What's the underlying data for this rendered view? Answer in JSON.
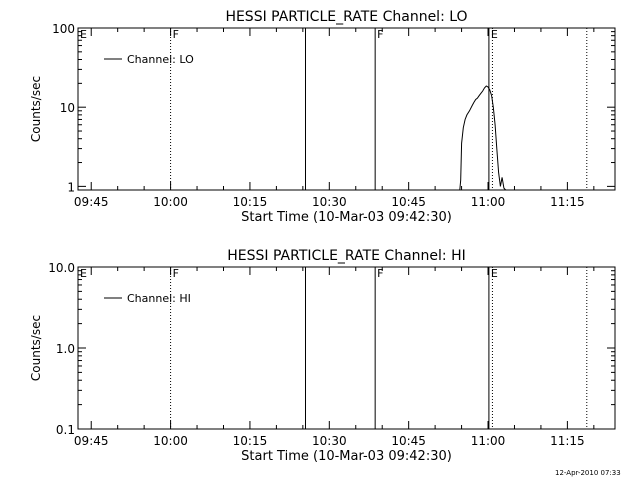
{
  "timestamp": "12-Apr-2010 07:33",
  "chart_data": [
    {
      "type": "line",
      "title": "HESSI PARTICLE_RATE Channel: LO",
      "xlabel": "Start Time (10-Mar-03 09:42:30)",
      "ylabel": "Counts/sec",
      "yscale": "log",
      "ylim": [
        0.9,
        100
      ],
      "y_ticks": [
        "1",
        "10",
        "100"
      ],
      "xlim": [
        "09:42:30",
        "11:24:00"
      ],
      "x_ticks": [
        "09:45",
        "10:00",
        "10:15",
        "10:30",
        "10:45",
        "11:00",
        "11:15"
      ],
      "legend": {
        "position": "top-left",
        "entries": [
          "Channel: LO"
        ]
      },
      "grid": false,
      "markers": [
        {
          "label": "E",
          "time": "09:42:30",
          "style": "solid"
        },
        {
          "label": "F",
          "time": "10:00:00",
          "style": "dotted"
        },
        {
          "label": "",
          "time": "10:25:30",
          "style": "solid"
        },
        {
          "label": "F",
          "time": "10:38:40",
          "style": "solid"
        },
        {
          "label": "E",
          "time": "11:00:10",
          "style": "solid"
        },
        {
          "label": "",
          "time": "11:00:50",
          "style": "dotted"
        },
        {
          "label": "",
          "time": "11:18:40",
          "style": "dotted"
        }
      ],
      "series": [
        {
          "name": "Channel: LO",
          "x": [
            "10:54:40",
            "10:54:50",
            "10:55:00",
            "10:55:20",
            "10:55:40",
            "10:56:00",
            "10:56:30",
            "10:57:00",
            "10:57:20",
            "10:57:40",
            "10:58:00",
            "10:58:20",
            "10:58:40",
            "10:59:00",
            "10:59:20",
            "10:59:40",
            "11:00:00",
            "11:00:20",
            "11:00:40",
            "11:01:00",
            "11:01:20",
            "11:01:40",
            "11:02:00",
            "11:02:20",
            "11:02:40",
            "11:03:00",
            "11:03:20"
          ],
          "y": [
            0.9,
            1.2,
            3.5,
            5.5,
            7.0,
            8.0,
            9.0,
            10.5,
            11.5,
            12.5,
            13.0,
            14.0,
            15.0,
            16.0,
            17.5,
            18.5,
            18.0,
            16.5,
            14.0,
            10.0,
            6.0,
            3.0,
            1.5,
            1.0,
            1.3,
            0.95,
            0.9
          ]
        }
      ]
    },
    {
      "type": "line",
      "title": "HESSI PARTICLE_RATE Channel: HI",
      "xlabel": "Start Time (10-Mar-03 09:42:30)",
      "ylabel": "Counts/sec",
      "yscale": "log",
      "ylim": [
        0.1,
        10
      ],
      "y_ticks": [
        "0.1",
        "1.0",
        "10.0"
      ],
      "xlim": [
        "09:42:30",
        "11:24:00"
      ],
      "x_ticks": [
        "09:45",
        "10:00",
        "10:15",
        "10:30",
        "10:45",
        "11:00",
        "11:15"
      ],
      "legend": {
        "position": "top-left",
        "entries": [
          "Channel: HI"
        ]
      },
      "grid": false,
      "markers": [
        {
          "label": "E",
          "time": "09:42:30",
          "style": "solid"
        },
        {
          "label": "F",
          "time": "10:00:00",
          "style": "dotted"
        },
        {
          "label": "",
          "time": "10:25:30",
          "style": "solid"
        },
        {
          "label": "F",
          "time": "10:38:40",
          "style": "solid"
        },
        {
          "label": "E",
          "time": "11:00:10",
          "style": "solid"
        },
        {
          "label": "",
          "time": "11:00:50",
          "style": "dotted"
        },
        {
          "label": "",
          "time": "11:18:40",
          "style": "dotted"
        }
      ],
      "series": [
        {
          "name": "Channel: HI",
          "x": [],
          "y": []
        }
      ]
    }
  ]
}
